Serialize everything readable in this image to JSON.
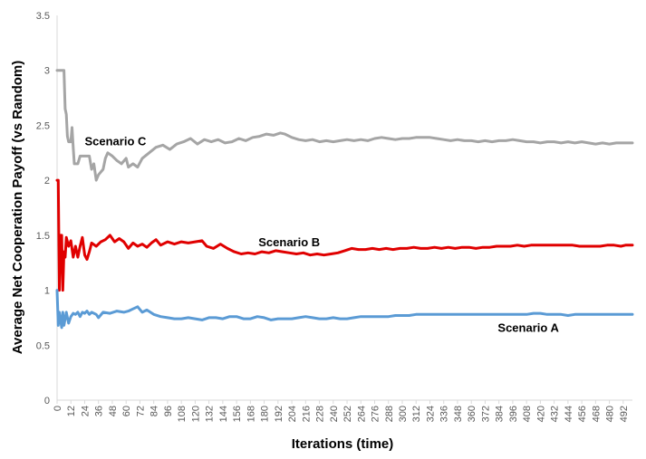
{
  "chart_data": {
    "type": "line",
    "title": "",
    "xlabel": "Iterations (time)",
    "ylabel": "Average Net Cooperation Payoff (vs Random)",
    "xlim": [
      0,
      500
    ],
    "ylim": [
      0,
      3.5
    ],
    "x_ticks": [
      "0",
      "12",
      "24",
      "36",
      "48",
      "60",
      "72",
      "84",
      "96",
      "108",
      "120",
      "132",
      "144",
      "156",
      "168",
      "180",
      "192",
      "204",
      "216",
      "228",
      "240",
      "252",
      "264",
      "276",
      "288",
      "300",
      "312",
      "324",
      "336",
      "348",
      "360",
      "372",
      "384",
      "396",
      "408",
      "420",
      "432",
      "444",
      "456",
      "468",
      "480",
      "492"
    ],
    "y_ticks": [
      "0",
      "0.5",
      "1",
      "1.5",
      "2",
      "2.5",
      "3",
      "3.5"
    ],
    "grid": false,
    "legend": "none",
    "series": [
      {
        "name": "Scenario C",
        "color": "#a5a5a5",
        "label_at": [
          24,
          2.32
        ],
        "points": [
          [
            0,
            3.0
          ],
          [
            2,
            3.0
          ],
          [
            4,
            3.0
          ],
          [
            6,
            3.0
          ],
          [
            7,
            2.65
          ],
          [
            8,
            2.6
          ],
          [
            9,
            2.4
          ],
          [
            10,
            2.35
          ],
          [
            12,
            2.35
          ],
          [
            13,
            2.48
          ],
          [
            14,
            2.3
          ],
          [
            15,
            2.15
          ],
          [
            18,
            2.15
          ],
          [
            20,
            2.22
          ],
          [
            24,
            2.22
          ],
          [
            28,
            2.22
          ],
          [
            30,
            2.1
          ],
          [
            32,
            2.15
          ],
          [
            34,
            2.0
          ],
          [
            36,
            2.05
          ],
          [
            40,
            2.1
          ],
          [
            42,
            2.2
          ],
          [
            44,
            2.25
          ],
          [
            48,
            2.22
          ],
          [
            52,
            2.18
          ],
          [
            56,
            2.15
          ],
          [
            60,
            2.2
          ],
          [
            62,
            2.12
          ],
          [
            66,
            2.15
          ],
          [
            70,
            2.12
          ],
          [
            74,
            2.2
          ],
          [
            80,
            2.25
          ],
          [
            86,
            2.3
          ],
          [
            92,
            2.32
          ],
          [
            98,
            2.28
          ],
          [
            104,
            2.33
          ],
          [
            110,
            2.35
          ],
          [
            116,
            2.38
          ],
          [
            122,
            2.33
          ],
          [
            128,
            2.37
          ],
          [
            134,
            2.35
          ],
          [
            140,
            2.37
          ],
          [
            146,
            2.34
          ],
          [
            152,
            2.35
          ],
          [
            158,
            2.38
          ],
          [
            164,
            2.36
          ],
          [
            170,
            2.39
          ],
          [
            176,
            2.4
          ],
          [
            182,
            2.42
          ],
          [
            188,
            2.41
          ],
          [
            194,
            2.43
          ],
          [
            198,
            2.42
          ],
          [
            204,
            2.39
          ],
          [
            210,
            2.37
          ],
          [
            216,
            2.36
          ],
          [
            222,
            2.37
          ],
          [
            228,
            2.35
          ],
          [
            234,
            2.36
          ],
          [
            240,
            2.35
          ],
          [
            246,
            2.36
          ],
          [
            252,
            2.37
          ],
          [
            258,
            2.36
          ],
          [
            264,
            2.37
          ],
          [
            270,
            2.36
          ],
          [
            276,
            2.38
          ],
          [
            282,
            2.39
          ],
          [
            288,
            2.38
          ],
          [
            294,
            2.37
          ],
          [
            300,
            2.38
          ],
          [
            306,
            2.38
          ],
          [
            312,
            2.39
          ],
          [
            318,
            2.39
          ],
          [
            324,
            2.39
          ],
          [
            330,
            2.38
          ],
          [
            336,
            2.37
          ],
          [
            342,
            2.36
          ],
          [
            348,
            2.37
          ],
          [
            354,
            2.36
          ],
          [
            360,
            2.36
          ],
          [
            366,
            2.35
          ],
          [
            372,
            2.36
          ],
          [
            378,
            2.35
          ],
          [
            384,
            2.36
          ],
          [
            390,
            2.36
          ],
          [
            396,
            2.37
          ],
          [
            402,
            2.36
          ],
          [
            408,
            2.35
          ],
          [
            414,
            2.35
          ],
          [
            420,
            2.34
          ],
          [
            426,
            2.35
          ],
          [
            432,
            2.35
          ],
          [
            438,
            2.34
          ],
          [
            444,
            2.35
          ],
          [
            450,
            2.34
          ],
          [
            456,
            2.35
          ],
          [
            462,
            2.34
          ],
          [
            468,
            2.33
          ],
          [
            474,
            2.34
          ],
          [
            480,
            2.33
          ],
          [
            486,
            2.34
          ],
          [
            492,
            2.34
          ],
          [
            500,
            2.34
          ]
        ]
      },
      {
        "name": "Scenario B",
        "color": "#e00000",
        "label_at": [
          175,
          1.4
        ],
        "points": [
          [
            0,
            2.0
          ],
          [
            1,
            2.0
          ],
          [
            2,
            1.0
          ],
          [
            3,
            1.5
          ],
          [
            4,
            1.5
          ],
          [
            5,
            1.0
          ],
          [
            6,
            1.35
          ],
          [
            7,
            1.3
          ],
          [
            8,
            1.48
          ],
          [
            10,
            1.4
          ],
          [
            12,
            1.45
          ],
          [
            14,
            1.3
          ],
          [
            16,
            1.4
          ],
          [
            18,
            1.3
          ],
          [
            20,
            1.4
          ],
          [
            22,
            1.48
          ],
          [
            24,
            1.32
          ],
          [
            26,
            1.28
          ],
          [
            28,
            1.35
          ],
          [
            30,
            1.43
          ],
          [
            34,
            1.4
          ],
          [
            38,
            1.44
          ],
          [
            42,
            1.46
          ],
          [
            46,
            1.5
          ],
          [
            50,
            1.44
          ],
          [
            54,
            1.47
          ],
          [
            58,
            1.44
          ],
          [
            62,
            1.38
          ],
          [
            66,
            1.43
          ],
          [
            70,
            1.4
          ],
          [
            74,
            1.42
          ],
          [
            78,
            1.39
          ],
          [
            82,
            1.43
          ],
          [
            86,
            1.46
          ],
          [
            90,
            1.41
          ],
          [
            96,
            1.44
          ],
          [
            102,
            1.42
          ],
          [
            108,
            1.44
          ],
          [
            114,
            1.43
          ],
          [
            120,
            1.44
          ],
          [
            126,
            1.45
          ],
          [
            130,
            1.4
          ],
          [
            136,
            1.38
          ],
          [
            142,
            1.42
          ],
          [
            148,
            1.38
          ],
          [
            154,
            1.35
          ],
          [
            160,
            1.33
          ],
          [
            166,
            1.34
          ],
          [
            172,
            1.33
          ],
          [
            178,
            1.35
          ],
          [
            184,
            1.34
          ],
          [
            190,
            1.36
          ],
          [
            196,
            1.35
          ],
          [
            202,
            1.34
          ],
          [
            208,
            1.33
          ],
          [
            214,
            1.34
          ],
          [
            220,
            1.32
          ],
          [
            226,
            1.33
          ],
          [
            232,
            1.32
          ],
          [
            238,
            1.33
          ],
          [
            244,
            1.34
          ],
          [
            250,
            1.36
          ],
          [
            256,
            1.38
          ],
          [
            262,
            1.37
          ],
          [
            268,
            1.37
          ],
          [
            274,
            1.38
          ],
          [
            280,
            1.37
          ],
          [
            286,
            1.38
          ],
          [
            292,
            1.37
          ],
          [
            298,
            1.38
          ],
          [
            304,
            1.38
          ],
          [
            310,
            1.39
          ],
          [
            316,
            1.38
          ],
          [
            322,
            1.38
          ],
          [
            328,
            1.39
          ],
          [
            334,
            1.38
          ],
          [
            340,
            1.39
          ],
          [
            346,
            1.38
          ],
          [
            352,
            1.39
          ],
          [
            358,
            1.39
          ],
          [
            364,
            1.38
          ],
          [
            370,
            1.39
          ],
          [
            376,
            1.39
          ],
          [
            382,
            1.4
          ],
          [
            388,
            1.4
          ],
          [
            394,
            1.4
          ],
          [
            400,
            1.41
          ],
          [
            406,
            1.4
          ],
          [
            412,
            1.41
          ],
          [
            418,
            1.41
          ],
          [
            424,
            1.41
          ],
          [
            430,
            1.41
          ],
          [
            436,
            1.41
          ],
          [
            442,
            1.41
          ],
          [
            448,
            1.41
          ],
          [
            454,
            1.4
          ],
          [
            460,
            1.4
          ],
          [
            466,
            1.4
          ],
          [
            472,
            1.4
          ],
          [
            478,
            1.41
          ],
          [
            484,
            1.41
          ],
          [
            490,
            1.4
          ],
          [
            494,
            1.41
          ],
          [
            500,
            1.41
          ]
        ]
      },
      {
        "name": "Scenario A",
        "color": "#5b9bd5",
        "label_at": [
          383,
          0.62
        ],
        "points": [
          [
            0,
            1.0
          ],
          [
            1,
            0.68
          ],
          [
            2,
            0.8
          ],
          [
            4,
            0.66
          ],
          [
            5,
            0.8
          ],
          [
            6,
            0.68
          ],
          [
            8,
            0.8
          ],
          [
            10,
            0.7
          ],
          [
            12,
            0.76
          ],
          [
            14,
            0.79
          ],
          [
            16,
            0.78
          ],
          [
            18,
            0.8
          ],
          [
            20,
            0.76
          ],
          [
            22,
            0.8
          ],
          [
            24,
            0.79
          ],
          [
            26,
            0.81
          ],
          [
            28,
            0.78
          ],
          [
            30,
            0.8
          ],
          [
            34,
            0.78
          ],
          [
            36,
            0.75
          ],
          [
            40,
            0.8
          ],
          [
            46,
            0.79
          ],
          [
            52,
            0.81
          ],
          [
            58,
            0.8
          ],
          [
            62,
            0.81
          ],
          [
            66,
            0.83
          ],
          [
            70,
            0.85
          ],
          [
            74,
            0.8
          ],
          [
            78,
            0.82
          ],
          [
            84,
            0.78
          ],
          [
            90,
            0.76
          ],
          [
            96,
            0.75
          ],
          [
            102,
            0.74
          ],
          [
            108,
            0.74
          ],
          [
            114,
            0.75
          ],
          [
            120,
            0.74
          ],
          [
            126,
            0.73
          ],
          [
            132,
            0.75
          ],
          [
            138,
            0.75
          ],
          [
            144,
            0.74
          ],
          [
            150,
            0.76
          ],
          [
            156,
            0.76
          ],
          [
            162,
            0.74
          ],
          [
            168,
            0.74
          ],
          [
            174,
            0.76
          ],
          [
            180,
            0.75
          ],
          [
            186,
            0.73
          ],
          [
            192,
            0.74
          ],
          [
            198,
            0.74
          ],
          [
            204,
            0.74
          ],
          [
            210,
            0.75
          ],
          [
            216,
            0.76
          ],
          [
            222,
            0.75
          ],
          [
            228,
            0.74
          ],
          [
            234,
            0.74
          ],
          [
            240,
            0.75
          ],
          [
            246,
            0.74
          ],
          [
            252,
            0.74
          ],
          [
            258,
            0.75
          ],
          [
            264,
            0.76
          ],
          [
            270,
            0.76
          ],
          [
            276,
            0.76
          ],
          [
            282,
            0.76
          ],
          [
            288,
            0.76
          ],
          [
            294,
            0.77
          ],
          [
            300,
            0.77
          ],
          [
            306,
            0.77
          ],
          [
            312,
            0.78
          ],
          [
            318,
            0.78
          ],
          [
            324,
            0.78
          ],
          [
            330,
            0.78
          ],
          [
            336,
            0.78
          ],
          [
            342,
            0.78
          ],
          [
            348,
            0.78
          ],
          [
            354,
            0.78
          ],
          [
            360,
            0.78
          ],
          [
            366,
            0.78
          ],
          [
            372,
            0.78
          ],
          [
            378,
            0.78
          ],
          [
            384,
            0.78
          ],
          [
            390,
            0.78
          ],
          [
            396,
            0.78
          ],
          [
            402,
            0.78
          ],
          [
            408,
            0.78
          ],
          [
            414,
            0.79
          ],
          [
            420,
            0.79
          ],
          [
            426,
            0.78
          ],
          [
            432,
            0.78
          ],
          [
            438,
            0.78
          ],
          [
            444,
            0.77
          ],
          [
            450,
            0.78
          ],
          [
            456,
            0.78
          ],
          [
            462,
            0.78
          ],
          [
            468,
            0.78
          ],
          [
            474,
            0.78
          ],
          [
            480,
            0.78
          ],
          [
            486,
            0.78
          ],
          [
            492,
            0.78
          ],
          [
            500,
            0.78
          ]
        ]
      }
    ]
  }
}
